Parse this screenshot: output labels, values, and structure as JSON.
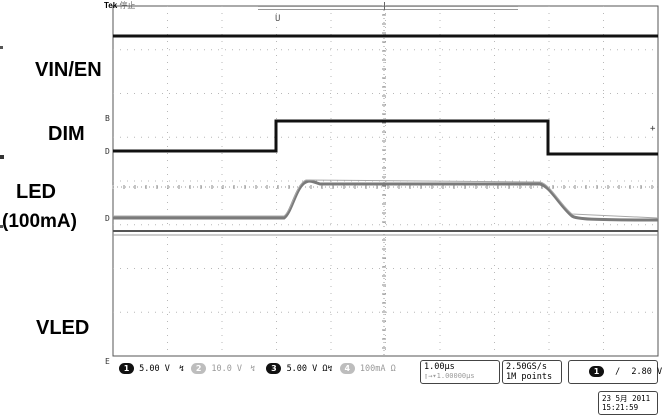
{
  "scope": {
    "brand": "Tek",
    "run_state": "停止"
  },
  "channels": {
    "vin_en": "VIN/EN",
    "dim": "DIM",
    "led_line1": "LED",
    "led_line2": "(100mA)",
    "vled": "VLED"
  },
  "markers": {
    "trigger_top": "U",
    "ch2_level": "B",
    "ch2_ground": "D",
    "ch4_ground": "D",
    "ch1_ground": "E",
    "right_edge": "+"
  },
  "readouts": {
    "ch1_scale": "5.00 V",
    "ch2_scale": "10.0 V",
    "ch3_scale": "5.00 V",
    "ch4_scale": "100mA",
    "ohm_symbol": "Ω",
    "bw_symbol": "Ω↯",
    "timebase": "1.00µs",
    "trigger_pos": "▯→▾1.00000µs",
    "sample_rate": "2.50GS/s",
    "record_length": "1M points",
    "trigger_slope": "/",
    "trigger_level": "2.80 V",
    "date": "23 5月 2011",
    "time": "15:21:59"
  },
  "colors": {
    "trace": "#111111",
    "grid": "#b8b8b8",
    "frame": "#555555"
  }
}
